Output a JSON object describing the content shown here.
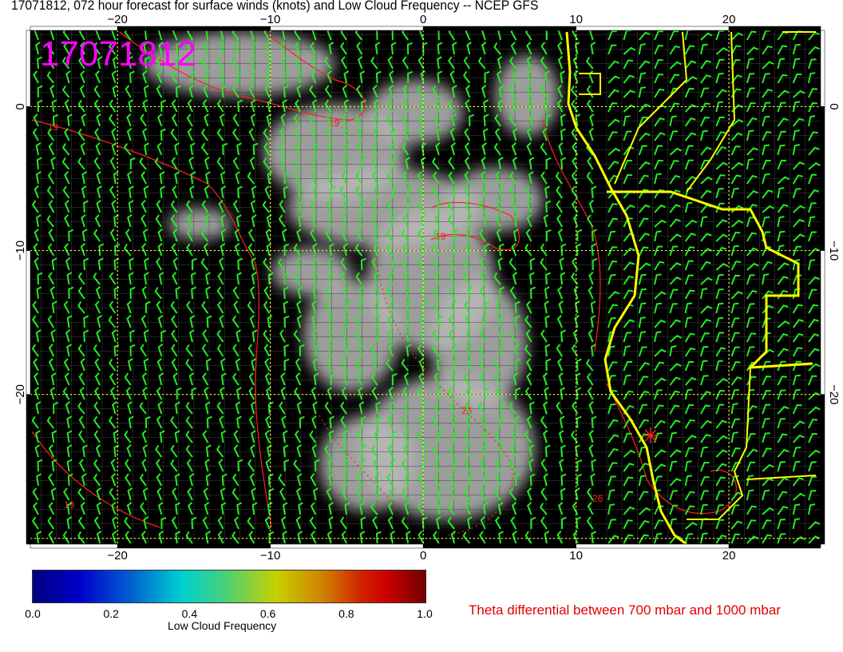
{
  "title": "17071812, 072 hour forecast for surface winds (knots) and Low Cloud Frequency -- NCEP GFS",
  "stamp": "17071812",
  "map": {
    "lon_range": [
      -25.7,
      26
    ],
    "lat_range": [
      -30.4,
      5.3
    ],
    "lon_ticks": [
      "−20",
      "−10",
      "0",
      "10",
      "20"
    ],
    "lat_ticks": [
      "0",
      "−10",
      "−20"
    ],
    "contour_labels": [
      "19",
      "19",
      "19",
      "26",
      "19",
      "26"
    ],
    "colors": {
      "background": "#000000",
      "coast": "#ffff00",
      "barbs": "#00ff00",
      "contours": "#ff0000",
      "grid": "#ffff00",
      "stamp": "#ff00ff"
    }
  },
  "colorbar": {
    "ticks": [
      "0.0",
      "0.2",
      "0.4",
      "0.6",
      "0.8",
      "1.0"
    ],
    "title": "Low Cloud Frequency",
    "range": [
      0,
      1
    ]
  },
  "legend": "Theta differential between 700 mbar and 1000 mbar"
}
